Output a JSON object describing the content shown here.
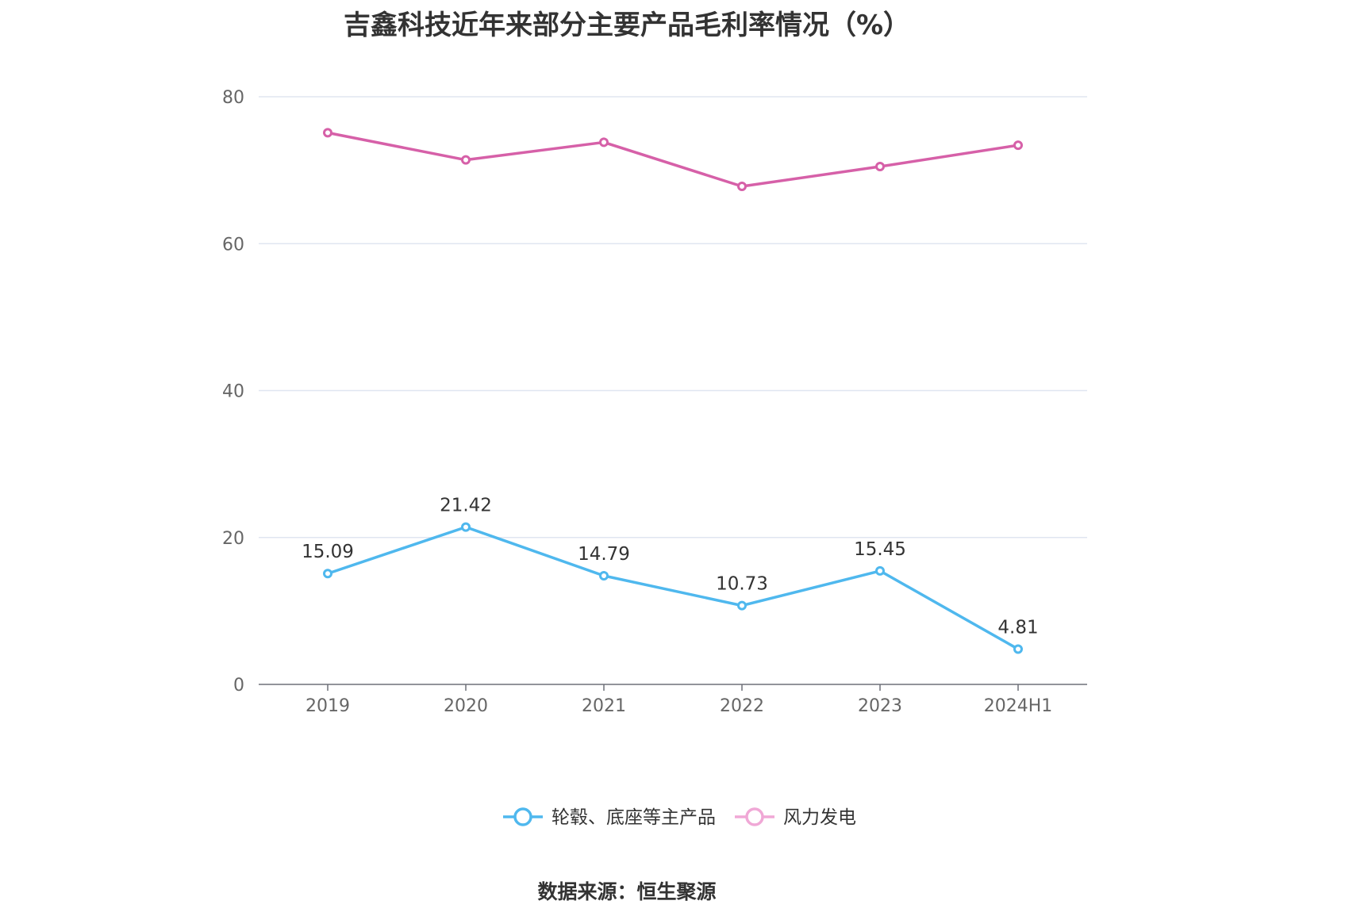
{
  "title": "吉鑫科技近年来部分主要产品毛利率情况（%）",
  "source": "数据来源：恒生聚源",
  "chart_data": {
    "type": "line",
    "categories": [
      "2019",
      "2020",
      "2021",
      "2022",
      "2023",
      "2024H1"
    ],
    "series": [
      {
        "name": "轮毂、底座等主产品",
        "values": [
          15.09,
          21.42,
          14.79,
          10.73,
          15.45,
          4.81
        ],
        "color": "#4fb8ee",
        "show_labels": true
      },
      {
        "name": "风力发电",
        "values": [
          75.1,
          71.4,
          73.8,
          67.8,
          70.5,
          73.4
        ],
        "color": "#d660a8",
        "legend_color": "#f0a8d6",
        "show_labels": false
      }
    ],
    "yticks": [
      0,
      20,
      40,
      60,
      80
    ],
    "ylim": [
      0,
      80
    ],
    "grid": true,
    "legend_position": "bottom"
  }
}
